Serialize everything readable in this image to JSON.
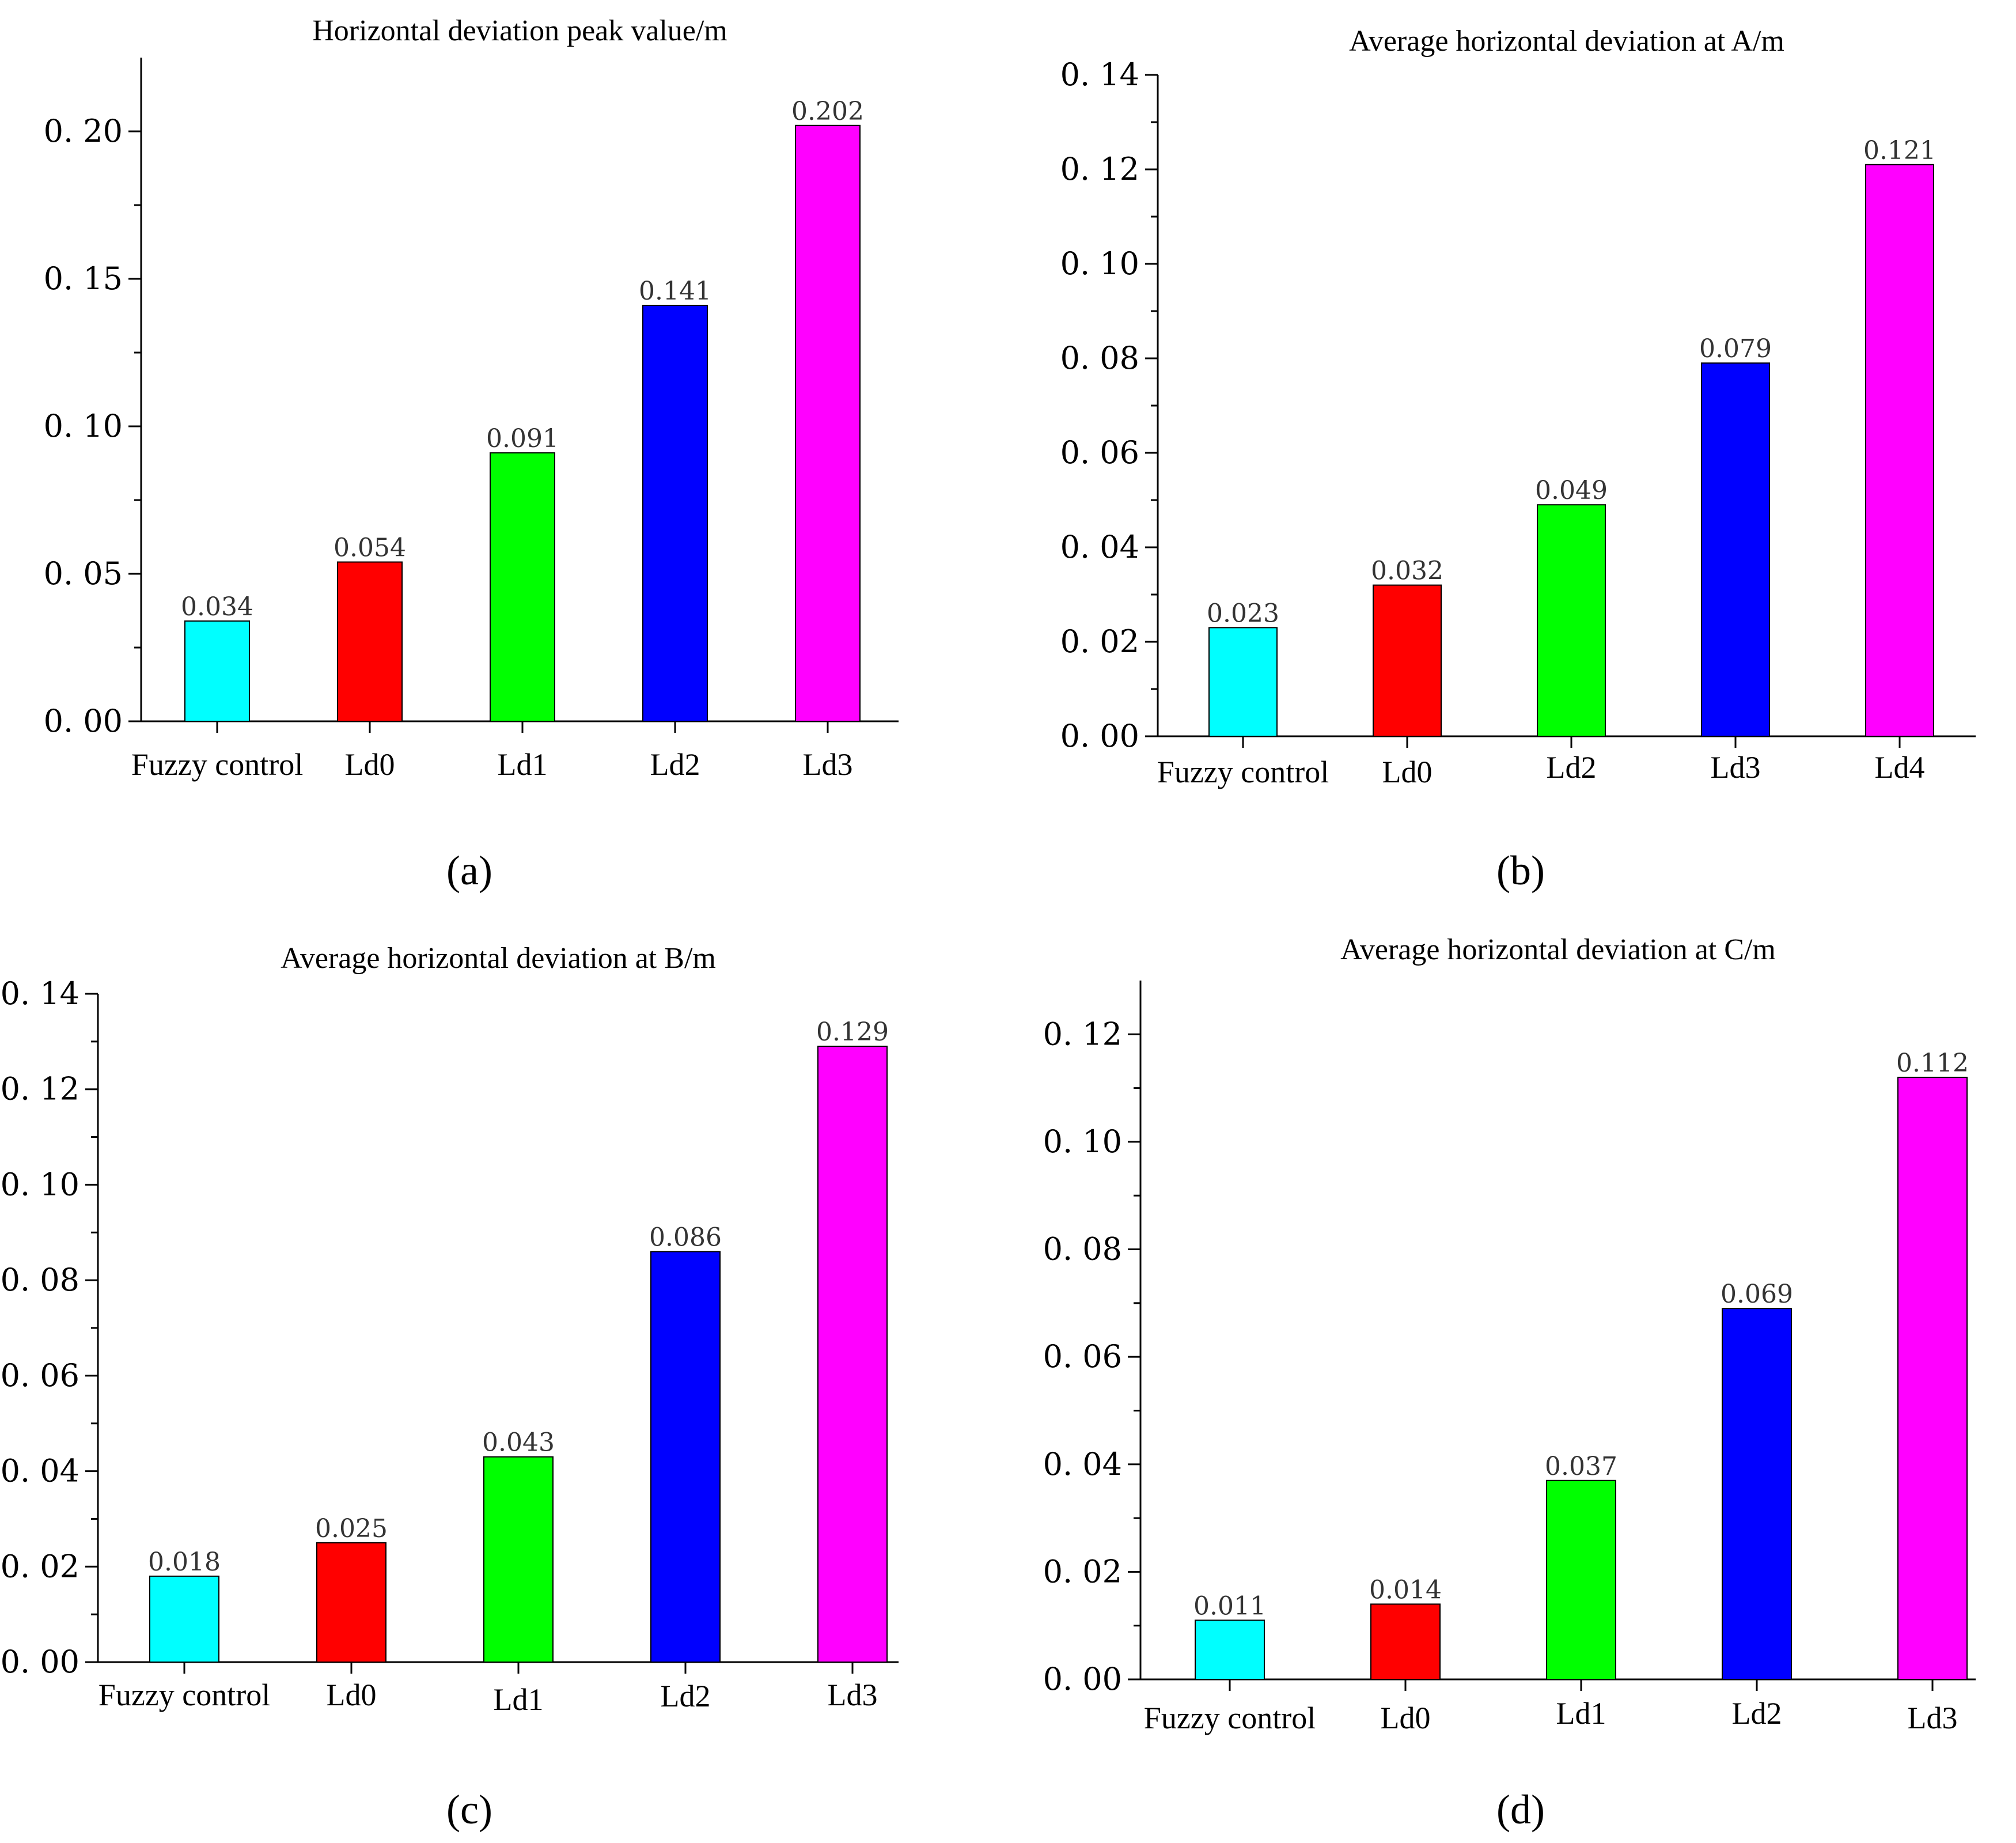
{
  "colors": [
    "#00ffff",
    "#ff0000",
    "#00ff00",
    "#0000ff",
    "#ff00ff"
  ],
  "chart_data": [
    {
      "type": "bar",
      "panel": "a",
      "title": "Horizontal deviation peak value/m",
      "categories": [
        "Fuzzy control",
        "Ld0",
        "Ld1",
        "Ld2",
        "Ld3"
      ],
      "values": [
        0.034,
        0.054,
        0.091,
        0.141,
        0.202
      ],
      "value_labels": [
        "0.034",
        "0.054",
        "0.091",
        "0.141",
        "0.202"
      ],
      "ylim": [
        0,
        0.225
      ],
      "yticks": [
        0.0,
        0.05,
        0.1,
        0.15,
        0.2
      ],
      "ytick_labels": [
        "0. 00",
        "0. 05",
        "0. 10",
        "0. 15",
        "0. 20"
      ],
      "xlabel": "",
      "ylabel": ""
    },
    {
      "type": "bar",
      "panel": "b",
      "title": "Average horizontal deviation at A/m",
      "categories": [
        "Fuzzy control",
        "Ld0",
        "Ld2",
        "Ld3",
        "Ld4"
      ],
      "values": [
        0.023,
        0.032,
        0.049,
        0.079,
        0.121
      ],
      "value_labels": [
        "0.023",
        "0.032",
        "0.049",
        "0.079",
        "0.121"
      ],
      "ylim": [
        0,
        0.14
      ],
      "yticks": [
        0.0,
        0.02,
        0.04,
        0.06,
        0.08,
        0.1,
        0.12,
        0.14
      ],
      "ytick_labels": [
        "0. 00",
        "0. 02",
        "0. 04",
        "0. 06",
        "0. 08",
        "0. 10",
        "0. 12",
        "0. 14"
      ],
      "xlabel": "",
      "ylabel": ""
    },
    {
      "type": "bar",
      "panel": "c",
      "title": "Average horizontal deviation at B/m",
      "categories": [
        "Fuzzy control",
        "Ld0",
        "Ld1",
        "Ld2",
        "Ld3"
      ],
      "values": [
        0.018,
        0.025,
        0.043,
        0.086,
        0.129
      ],
      "value_labels": [
        "0.018",
        "0.025",
        "0.043",
        "0.086",
        "0.129"
      ],
      "ylim": [
        0,
        0.14
      ],
      "yticks": [
        0.0,
        0.02,
        0.04,
        0.06,
        0.08,
        0.1,
        0.12,
        0.14
      ],
      "ytick_labels": [
        "0. 00",
        "0. 02",
        "0. 04",
        "0. 06",
        "0. 08",
        "0. 10",
        "0. 12",
        "0. 14"
      ],
      "xlabel": "",
      "ylabel": ""
    },
    {
      "type": "bar",
      "panel": "d",
      "title": "Average horizontal deviation at C/m",
      "categories": [
        "Fuzzy control",
        "Ld0",
        "Ld1",
        "Ld2",
        "Ld3"
      ],
      "values": [
        0.011,
        0.014,
        0.037,
        0.069,
        0.112
      ],
      "value_labels": [
        "0.011",
        "0.014",
        "0.037",
        "0.069",
        "0.112"
      ],
      "ylim": [
        0,
        0.13
      ],
      "yticks": [
        0.0,
        0.02,
        0.04,
        0.06,
        0.08,
        0.1,
        0.12
      ],
      "ytick_labels": [
        "0. 00",
        "0. 02",
        "0. 04",
        "0. 06",
        "0. 08",
        "0. 10",
        "0. 12"
      ],
      "xlabel": "",
      "ylabel": ""
    }
  ],
  "panel_labels": [
    "(a)",
    "(b)",
    "(c)",
    "(d)"
  ]
}
